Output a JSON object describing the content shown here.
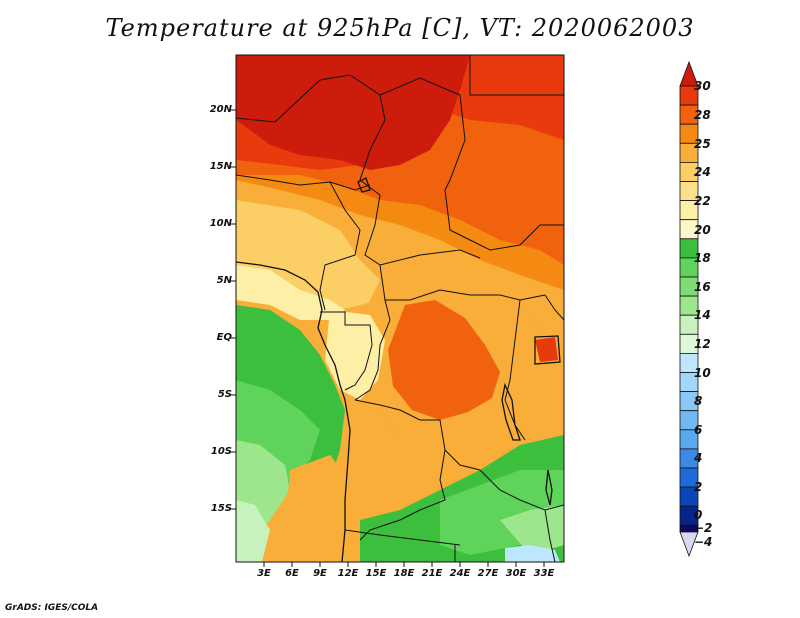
{
  "title": "Temperature at 925hPa [C], VT: 2020062003",
  "credit": "GrADS: IGES/COLA",
  "map": {
    "variable": "Temperature at 925hPa",
    "units": "C",
    "valid_time": "2020062003",
    "lat_labels": [
      "20N",
      "15N",
      "10N",
      "5N",
      "EQ",
      "5S",
      "10S",
      "15S"
    ],
    "lon_labels": [
      "3E",
      "6E",
      "9E",
      "12E",
      "15E",
      "18E",
      "21E",
      "24E",
      "27E",
      "30E",
      "33E"
    ]
  },
  "colorbar": {
    "labels": [
      "30",
      "28",
      "25",
      "24",
      "22",
      "20",
      "18",
      "16",
      "14",
      "12",
      "10",
      "8",
      "6",
      "4",
      "2",
      "0",
      "−2",
      "−4"
    ],
    "colors": [
      "#ce1c0c",
      "#e83a0c",
      "#f0620e",
      "#f58a12",
      "#f9ae3a",
      "#fbcf66",
      "#fdf0a6",
      "#3cbf3c",
      "#5fd35a",
      "#9ee68e",
      "#c8f2bd",
      "#bde6ff",
      "#8cc8f5",
      "#5aa8ee",
      "#3c8ae6",
      "#1e6ad8",
      "#0a46b8",
      "#06248a",
      "#0c0a5e",
      "#dad8f0"
    ]
  }
}
